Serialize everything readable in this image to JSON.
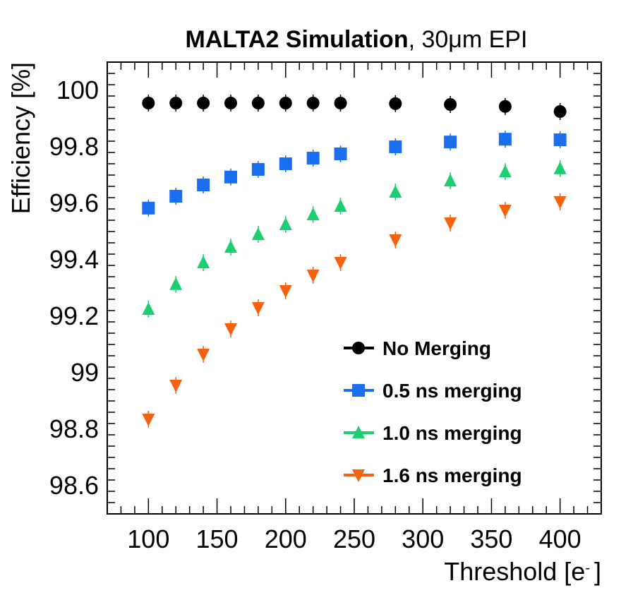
{
  "chart_data": {
    "type": "scatter",
    "title_bold": "MALTA2 Simulation",
    "title_rest": ", 30μm EPI",
    "xlabel": "Threshold [e",
    "xlabel_sup": "-",
    "xlabel_close": "]",
    "ylabel": "Efficiency [%]",
    "xlim": [
      70,
      430
    ],
    "ylim": [
      98.5,
      100.1
    ],
    "x_ticks": [
      100,
      150,
      200,
      250,
      300,
      350,
      400
    ],
    "x_tick_labels": [
      "100",
      "150",
      "200",
      "250",
      "300",
      "350",
      "400"
    ],
    "y_ticks": [
      98.6,
      98.8,
      99,
      99.2,
      99.4,
      99.6,
      99.8,
      100
    ],
    "y_tick_labels": [
      "98.6",
      "98.8",
      "99",
      "99.2",
      "99.4",
      "99.6",
      "99.8",
      "100"
    ],
    "x": [
      100,
      120,
      140,
      160,
      180,
      200,
      220,
      240,
      280,
      320,
      360,
      400
    ],
    "series": [
      {
        "name": "No Merging",
        "marker": "circle",
        "color": "#000000",
        "values": [
          99.955,
          99.955,
          99.955,
          99.955,
          99.955,
          99.955,
          99.955,
          99.955,
          99.953,
          99.95,
          99.943,
          99.925
        ]
      },
      {
        "name": "0.5 ns merging",
        "marker": "square",
        "color": "#1a6ef0",
        "values": [
          99.583,
          99.625,
          99.665,
          99.693,
          99.72,
          99.74,
          99.76,
          99.775,
          99.8,
          99.817,
          99.827,
          99.825
        ]
      },
      {
        "name": "1.0 ns merging",
        "marker": "triangle-up",
        "color": "#1ccf6e",
        "values": [
          99.225,
          99.313,
          99.39,
          99.445,
          99.49,
          99.525,
          99.56,
          99.59,
          99.64,
          99.68,
          99.712,
          99.723
        ]
      },
      {
        "name": "1.6 ns merging",
        "marker": "triangle-down",
        "color": "#f5620f",
        "values": [
          98.835,
          98.955,
          99.065,
          99.155,
          99.23,
          99.29,
          99.345,
          99.39,
          99.47,
          99.53,
          99.575,
          99.605
        ]
      }
    ],
    "legend_position": "bottom-right"
  }
}
